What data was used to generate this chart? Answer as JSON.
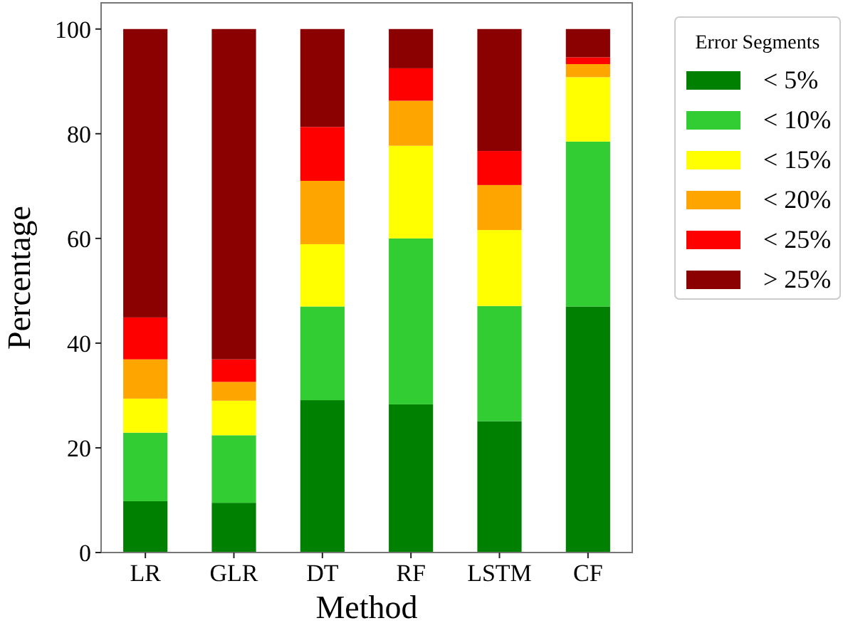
{
  "chart_data": {
    "type": "bar",
    "stacked": true,
    "xlabel": "Method",
    "ylabel": "Percentage",
    "legend_title": "Error Segments",
    "legend": "top right",
    "categories": [
      "LR",
      "GLR",
      "DT",
      "RF",
      "LSTM",
      "CF"
    ],
    "ylim": [
      0,
      105
    ],
    "yticks": [
      0,
      20,
      40,
      60,
      80,
      100
    ],
    "grid": false,
    "series": [
      {
        "name": "< 5%",
        "color": "#008000",
        "values": [
          9.8,
          9.5,
          29.1,
          28.3,
          25.1,
          47.0
        ]
      },
      {
        "name": "< 10%",
        "color": "#32cd32",
        "values": [
          13.1,
          12.9,
          17.9,
          31.7,
          22.0,
          31.5
        ]
      },
      {
        "name": "< 15%",
        "color": "#ffff00",
        "values": [
          6.5,
          6.6,
          11.9,
          17.7,
          14.5,
          12.3
        ]
      },
      {
        "name": "< 20%",
        "color": "#ffa500",
        "values": [
          7.5,
          3.6,
          12.1,
          8.6,
          8.6,
          2.5
        ]
      },
      {
        "name": "< 25%",
        "color": "#ff0000",
        "values": [
          8.0,
          4.3,
          10.3,
          6.2,
          6.5,
          1.3
        ]
      },
      {
        "name": "> 25%",
        "color": "#8b0000",
        "values": [
          55.1,
          63.1,
          18.7,
          7.5,
          23.3,
          5.4
        ]
      }
    ]
  }
}
